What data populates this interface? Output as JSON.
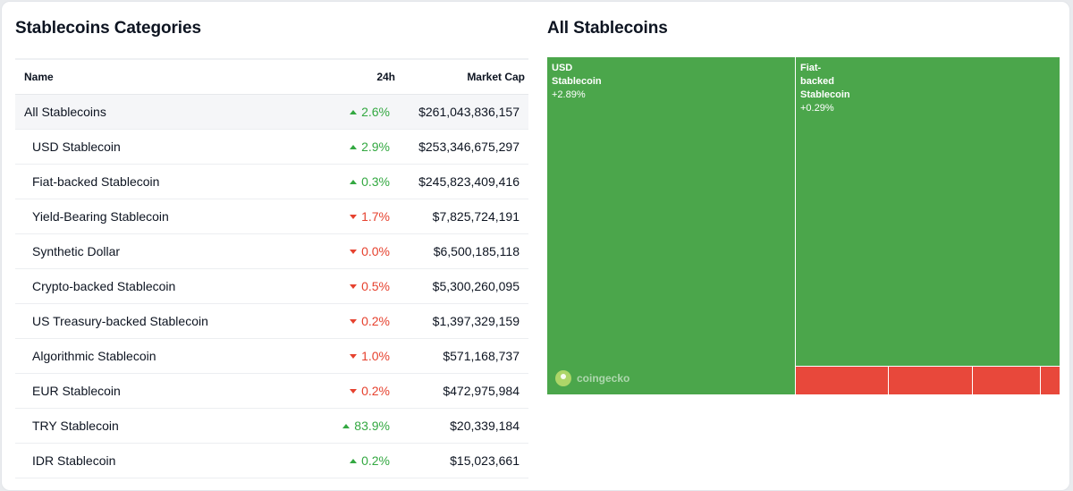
{
  "left_panel": {
    "title": "Stablecoins Categories",
    "columns": {
      "name": "Name",
      "change": "24h",
      "market_cap": "Market Cap"
    },
    "rows": [
      {
        "name": "All Stablecoins",
        "change": "2.6%",
        "direction": "up",
        "market_cap": "$261,043,836,157"
      },
      {
        "name": "USD Stablecoin",
        "change": "2.9%",
        "direction": "up",
        "market_cap": "$253,346,675,297"
      },
      {
        "name": "Fiat-backed Stablecoin",
        "change": "0.3%",
        "direction": "up",
        "market_cap": "$245,823,409,416"
      },
      {
        "name": "Yield-Bearing Stablecoin",
        "change": "1.7%",
        "direction": "down",
        "market_cap": "$7,825,724,191"
      },
      {
        "name": "Synthetic Dollar",
        "change": "0.0%",
        "direction": "down",
        "market_cap": "$6,500,185,118"
      },
      {
        "name": "Crypto-backed Stablecoin",
        "change": "0.5%",
        "direction": "down",
        "market_cap": "$5,300,260,095"
      },
      {
        "name": "US Treasury-backed Stablecoin",
        "change": "0.2%",
        "direction": "down",
        "market_cap": "$1,397,329,159"
      },
      {
        "name": "Algorithmic Stablecoin",
        "change": "1.0%",
        "direction": "down",
        "market_cap": "$571,168,737"
      },
      {
        "name": "EUR Stablecoin",
        "change": "0.2%",
        "direction": "down",
        "market_cap": "$472,975,984"
      },
      {
        "name": "TRY Stablecoin",
        "change": "83.9%",
        "direction": "up",
        "market_cap": "$20,339,184"
      },
      {
        "name": "IDR Stablecoin",
        "change": "0.2%",
        "direction": "up",
        "market_cap": "$15,023,661"
      }
    ]
  },
  "right_panel": {
    "title": "All Stablecoins",
    "treemap": {
      "tiles": [
        {
          "label": "USD\nStablecoin",
          "change": "+2.89%"
        },
        {
          "label": "Fiat-\nbacked\nStablecoin",
          "change": "+0.29%"
        }
      ],
      "watermark": "coingecko"
    }
  },
  "colors": {
    "up": "#33a841",
    "down": "#e6422f",
    "tile_green": "#4ba64b",
    "tile_red": "#e8483b"
  }
}
